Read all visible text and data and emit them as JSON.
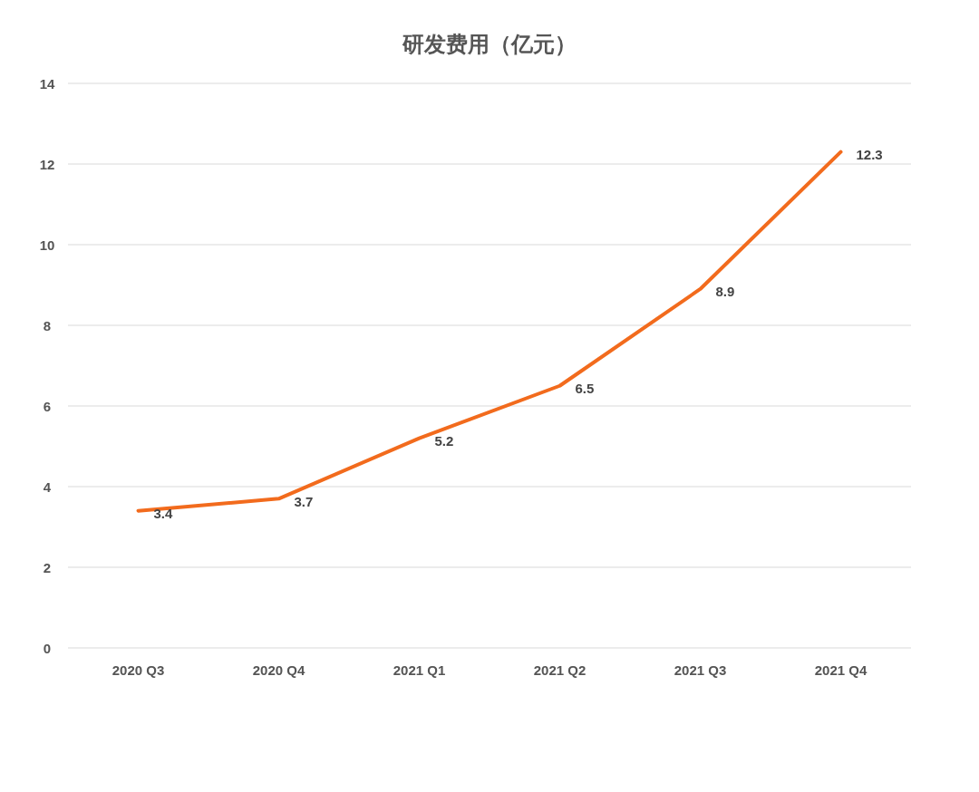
{
  "chart_data": {
    "type": "line",
    "title": "研发费用（亿元）",
    "categories": [
      "2020 Q3",
      "2020 Q4",
      "2021 Q1",
      "2021 Q2",
      "2021 Q3",
      "2021 Q4"
    ],
    "values": [
      3.4,
      3.7,
      5.2,
      6.5,
      8.9,
      12.3
    ],
    "color": "#f26b1d",
    "ylim": [
      0,
      14
    ],
    "yticks": [
      0,
      2,
      4,
      6,
      8,
      10,
      12,
      14
    ],
    "grid": "y",
    "data_labels": true,
    "marker": "none",
    "line_style": "solid"
  }
}
